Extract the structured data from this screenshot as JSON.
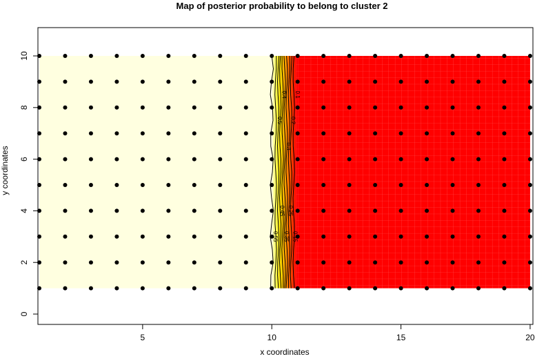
{
  "chart_data": {
    "type": "heatmap",
    "title": "Map of posterior probability to belong to cluster  2",
    "xlabel": "x coordinates",
    "ylabel": "y coordinates",
    "xlim": [
      1,
      20
    ],
    "ylim": [
      0,
      10
    ],
    "x_ticks": [
      5,
      10,
      15,
      20
    ],
    "y_ticks": [
      0,
      2,
      4,
      6,
      8,
      10
    ],
    "grid": false,
    "colors": {
      "high": "#FFFFE0",
      "mid": "#FFFF00",
      "low": "#FF0000",
      "points": "#000000"
    },
    "points": {
      "x": [
        1,
        2,
        3,
        4,
        5,
        6,
        7,
        8,
        9,
        10,
        11,
        12,
        13,
        14,
        15,
        16,
        17,
        18,
        19,
        20
      ],
      "y": [
        1,
        2,
        3,
        4,
        5,
        6,
        7,
        8,
        9,
        10
      ]
    },
    "contours": [
      {
        "level": 0.55,
        "label": "0.55",
        "x": 10.0
      },
      {
        "level": 0.5,
        "label": "0.5",
        "x": 10.15
      },
      {
        "level": 0.45,
        "label": "0.45",
        "x": 10.25
      },
      {
        "level": 0.4,
        "label": "0.4",
        "x": 10.33
      },
      {
        "level": 0.35,
        "label": "0.35",
        "x": 10.42
      },
      {
        "level": 0.3,
        "label": "0.3",
        "x": 10.5
      },
      {
        "level": 0.25,
        "label": "0.25",
        "x": 10.58
      },
      {
        "level": 0.2,
        "label": "0.2",
        "x": 10.67
      },
      {
        "level": 0.15,
        "label": "0.15",
        "x": 10.75
      },
      {
        "level": 0.1,
        "label": "0.1",
        "x": 10.85
      }
    ]
  }
}
